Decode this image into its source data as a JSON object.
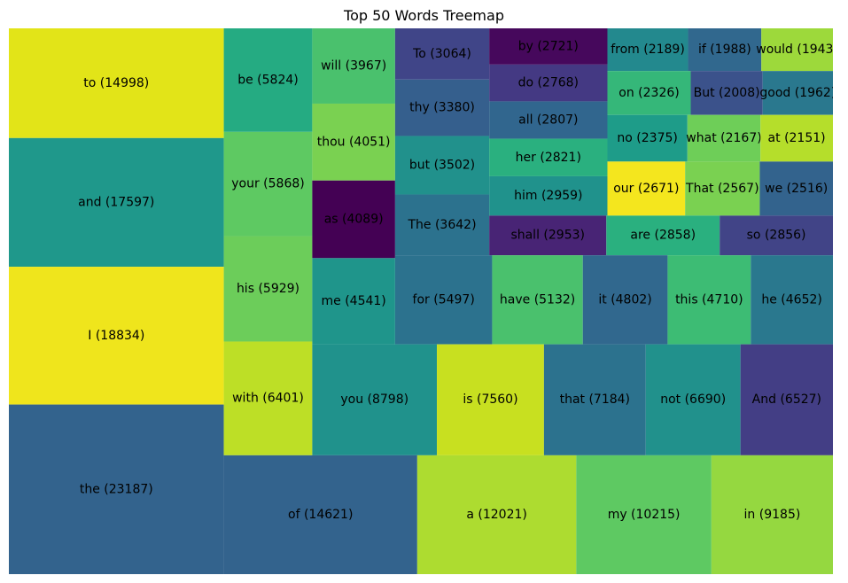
{
  "chart_data": {
    "type": "treemap",
    "title": "Top 50 Words Treemap",
    "cells": [
      {
        "label": "to (14998)",
        "word": "to",
        "value": 14998,
        "color": "#e2e418"
      },
      {
        "label": "and (17597)",
        "word": "and",
        "value": 17597,
        "color": "#1f988b"
      },
      {
        "label": "I (18834)",
        "word": "I",
        "value": 18834,
        "color": "#efe51c"
      },
      {
        "label": "the (23187)",
        "word": "the",
        "value": 23187,
        "color": "#33638d"
      },
      {
        "label": "be (5824)",
        "word": "be",
        "value": 5824,
        "color": "#25ab82"
      },
      {
        "label": "your (5868)",
        "word": "your",
        "value": 5868,
        "color": "#5ec962"
      },
      {
        "label": "his (5929)",
        "word": "his",
        "value": 5929,
        "color": "#6ccd5a"
      },
      {
        "label": "with (6401)",
        "word": "with",
        "value": 6401,
        "color": "#bddf26"
      },
      {
        "label": "will (3967)",
        "word": "will",
        "value": 3967,
        "color": "#4ac16d"
      },
      {
        "label": "thou (4051)",
        "word": "thou",
        "value": 4051,
        "color": "#7ad151"
      },
      {
        "label": "as (4089)",
        "word": "as",
        "value": 4089,
        "color": "#440154"
      },
      {
        "label": "me (4541)",
        "word": "me",
        "value": 4541,
        "color": "#1f958b"
      },
      {
        "label": "To (3064)",
        "word": "To",
        "value": 3064,
        "color": "#404588"
      },
      {
        "label": "thy (3380)",
        "word": "thy",
        "value": 3380,
        "color": "#355f8d"
      },
      {
        "label": "but (3502)",
        "word": "but",
        "value": 3502,
        "color": "#21918c"
      },
      {
        "label": "The (3642)",
        "word": "The",
        "value": 3642,
        "color": "#2c728e"
      },
      {
        "label": "by (2721)",
        "word": "by",
        "value": 2721,
        "color": "#46085c"
      },
      {
        "label": "do (2768)",
        "word": "do",
        "value": 2768,
        "color": "#443983"
      },
      {
        "label": "all (2807)",
        "word": "all",
        "value": 2807,
        "color": "#31668e"
      },
      {
        "label": "her (2821)",
        "word": "her",
        "value": 2821,
        "color": "#2ab07f"
      },
      {
        "label": "him (2959)",
        "word": "him",
        "value": 2959,
        "color": "#20928c"
      },
      {
        "label": "from (2189)",
        "word": "from",
        "value": 2189,
        "color": "#23898e"
      },
      {
        "label": "if (1988)",
        "word": "if",
        "value": 1988,
        "color": "#31688e"
      },
      {
        "label": "would (1943)",
        "word": "would",
        "value": 1943,
        "color": "#9dd93b"
      },
      {
        "label": "on (2326)",
        "word": "on",
        "value": 2326,
        "color": "#35b779"
      },
      {
        "label": "But (2008)",
        "word": "But",
        "value": 2008,
        "color": "#3b528b"
      },
      {
        "label": "good (1962)",
        "word": "good",
        "value": 1962,
        "color": "#2a788e"
      },
      {
        "label": "no (2375)",
        "word": "no",
        "value": 2375,
        "color": "#1e9c89"
      },
      {
        "label": "what (2167)",
        "word": "what",
        "value": 2167,
        "color": "#6ece58"
      },
      {
        "label": "at (2151)",
        "word": "at",
        "value": 2151,
        "color": "#b5de2b"
      },
      {
        "label": "our (2671)",
        "word": "our",
        "value": 2671,
        "color": "#f4e61e"
      },
      {
        "label": "That (2567)",
        "word": "That",
        "value": 2567,
        "color": "#7ad151"
      },
      {
        "label": "we (2516)",
        "word": "we",
        "value": 2516,
        "color": "#33638d"
      },
      {
        "label": "shall (2953)",
        "word": "shall",
        "value": 2953,
        "color": "#482475"
      },
      {
        "label": "are (2858)",
        "word": "are",
        "value": 2858,
        "color": "#2ab07f"
      },
      {
        "label": "so (2856)",
        "word": "so",
        "value": 2856,
        "color": "#414487"
      },
      {
        "label": "for (5497)",
        "word": "for",
        "value": 5497,
        "color": "#2c728e"
      },
      {
        "label": "have (5132)",
        "word": "have",
        "value": 5132,
        "color": "#4ac16d"
      },
      {
        "label": "it (4802)",
        "word": "it",
        "value": 4802,
        "color": "#31688e"
      },
      {
        "label": "this (4710)",
        "word": "this",
        "value": 4710,
        "color": "#3dbc74"
      },
      {
        "label": "he (4652)",
        "word": "he",
        "value": 4652,
        "color": "#2a788e"
      },
      {
        "label": "you (8798)",
        "word": "you",
        "value": 8798,
        "color": "#20928c"
      },
      {
        "label": "is (7560)",
        "word": "is",
        "value": 7560,
        "color": "#c8e020"
      },
      {
        "label": "that (7184)",
        "word": "that",
        "value": 7184,
        "color": "#2c728e"
      },
      {
        "label": "not (6690)",
        "word": "not",
        "value": 6690,
        "color": "#21918c"
      },
      {
        "label": "And (6527)",
        "word": "And",
        "value": 6527,
        "color": "#433e85"
      },
      {
        "label": "of (14621)",
        "word": "of",
        "value": 14621,
        "color": "#33638d"
      },
      {
        "label": "a (12021)",
        "word": "a",
        "value": 12021,
        "color": "#addc30"
      },
      {
        "label": "my (10215)",
        "word": "my",
        "value": 10215,
        "color": "#5ec962"
      },
      {
        "label": "in (9185)",
        "word": "in",
        "value": 9185,
        "color": "#95d840"
      }
    ]
  }
}
